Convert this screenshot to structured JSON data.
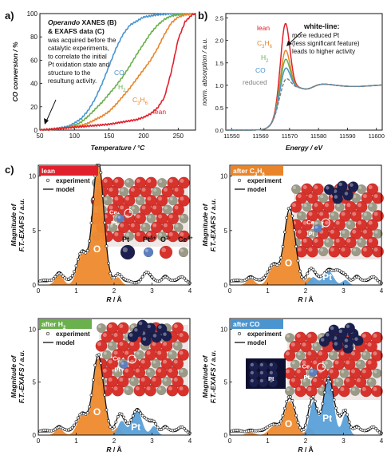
{
  "colors": {
    "lean": "#e0202c",
    "c3h6": "#e8852a",
    "h2": "#6ab04c",
    "co": "#4a95d0",
    "reduced": "#808080",
    "orange_fill": "#ee8a2e",
    "blue_fill": "#5aa0d8",
    "oxygen_ball": "#d7332c",
    "ce_ball": "#9a9a86",
    "pt_ball": "#1a1f4e",
    "ptc_ball": "#5d7fbf"
  },
  "panel_a": {
    "letter": "a)",
    "note_title": "Operando XANES (B) & EXAFS data (C)",
    "note_title_italic": "Operando",
    "note_title_rest": " XANES (B)",
    "note_title_line2": "& EXAFS data (C)",
    "note_lines": [
      "was acquired before the",
      "catalytic experiments,",
      "to correlate the initial",
      "Pt oxidation state and",
      "structure to the",
      "resultung activity."
    ],
    "curve_labels": {
      "co": "CO",
      "h2": "H",
      "h2_sub": "2",
      "c3h6": "C",
      "c3h6_sub1": "3",
      "c3h6_mid": "H",
      "c3h6_sub2": "6",
      "lean": "lean"
    },
    "xlabel": "Temperature / °C",
    "ylabel": "CO conversion / %"
  },
  "panel_b": {
    "letter": "b)",
    "xlabel": "Energy / eV",
    "ylabel": "norm. absorption / a.u.",
    "heading": "white-line:",
    "text_lines": [
      "more reduced Pt",
      "(less significant feature)",
      "leads to higher activity"
    ],
    "labels": {
      "lean": "lean",
      "c3h6": "C",
      "c3h6_s1": "3",
      "c3h6_m": "H",
      "c3h6_s2": "6",
      "h2": "H",
      "h2_s": "2",
      "co": "CO",
      "reduced": "reduced"
    }
  },
  "panel_c": {
    "letter": "c)",
    "legend_experiment": "experiment",
    "legend_model": "model",
    "xlabel_R": "R",
    "xlabel_unit": " / Å",
    "ylabel_line1": "Magnitude of",
    "ylabel_line2": "F.T.-EXAFS / a.u.",
    "peak_O": "O",
    "peak_Pt": "Pt",
    "subpanels": [
      {
        "tag": "lean",
        "tag_color": "#e0202c"
      },
      {
        "tag": "after C",
        "tag_sub1": "3",
        "tag_mid": "H",
        "tag_sub2": "6",
        "tag_color": "#e8852a"
      },
      {
        "tag": "after H",
        "tag_sub1": "2",
        "tag_color": "#6ab04c"
      },
      {
        "tag": "after CO",
        "tag_color": "#4a95d0"
      }
    ],
    "ball_legend": {
      "pt": "Pt",
      "ptc": "Pt",
      "ptc_sup": "δ+",
      "o": "O",
      "o_sup": "2-",
      "ce": "Ce",
      "ce_sup": "4+"
    },
    "inset_labels": {
      "ce": "Ce",
      "pt": "Pt"
    }
  },
  "chart_data": [
    {
      "type": "line",
      "title": "",
      "xlabel": "Temperature / °C",
      "ylabel": "CO conversion / %",
      "xlim": [
        50,
        275
      ],
      "ylim": [
        0,
        100
      ],
      "xticks": [
        50,
        100,
        150,
        200,
        250
      ],
      "yticks": [
        0,
        20,
        40,
        60,
        80,
        100
      ],
      "series": [
        {
          "name": "CO",
          "color": "#4a95d0",
          "x": [
            50,
            70,
            90,
            100,
            110,
            120,
            130,
            140,
            150,
            160,
            170,
            180,
            200,
            220,
            240,
            260,
            275
          ],
          "y": [
            0,
            1,
            3,
            6,
            10,
            17,
            27,
            40,
            55,
            70,
            82,
            90,
            97,
            99,
            100,
            100,
            100
          ]
        },
        {
          "name": "H2",
          "color": "#6ab04c",
          "x": [
            50,
            70,
            90,
            100,
            110,
            120,
            130,
            140,
            150,
            160,
            170,
            180,
            190,
            200,
            210,
            220,
            230,
            240,
            250,
            260,
            275
          ],
          "y": [
            0,
            1,
            2,
            4,
            7,
            12,
            18,
            24,
            31,
            38,
            46,
            55,
            65,
            74,
            83,
            90,
            95,
            98,
            99,
            100,
            100
          ]
        },
        {
          "name": "C3H6",
          "color": "#e8852a",
          "x": [
            50,
            70,
            90,
            100,
            110,
            120,
            130,
            140,
            150,
            160,
            170,
            180,
            190,
            200,
            210,
            220,
            230,
            240,
            250,
            260,
            275
          ],
          "y": [
            0,
            1,
            2,
            3,
            4,
            6,
            9,
            12,
            16,
            22,
            29,
            36,
            44,
            52,
            60,
            70,
            82,
            92,
            97,
            99,
            100
          ]
        },
        {
          "name": "lean",
          "color": "#e0202c",
          "x": [
            50,
            70,
            90,
            110,
            130,
            150,
            170,
            190,
            200,
            210,
            220,
            230,
            240,
            250,
            260,
            270,
            275
          ],
          "y": [
            0,
            1,
            2,
            3,
            4,
            5,
            7,
            9,
            11,
            14,
            19,
            28,
            50,
            78,
            93,
            99,
            100
          ]
        }
      ]
    },
    {
      "type": "line",
      "title": "",
      "xlabel": "Energy / eV",
      "ylabel": "norm. absorption / a.u.",
      "xlim": [
        11548,
        11602
      ],
      "ylim": [
        0,
        2.6
      ],
      "xticks": [
        11550,
        11560,
        11570,
        11580,
        11590,
        11600
      ],
      "yticks": [
        0.0,
        0.5,
        1.0,
        1.5,
        2.0,
        2.5
      ],
      "series": [
        {
          "name": "lean",
          "color": "#e0202c",
          "peak": 2.55
        },
        {
          "name": "C3H6",
          "color": "#e8852a",
          "peak": 1.95
        },
        {
          "name": "H2",
          "color": "#6ab04c",
          "peak": 1.75
        },
        {
          "name": "CO",
          "color": "#4a95d0",
          "peak": 1.55
        },
        {
          "name": "reduced",
          "color": "#808080",
          "peak": 1.3
        }
      ]
    },
    {
      "type": "line",
      "title": "",
      "xlabel": "R / Å",
      "ylabel": "Magnitude of F.T.-EXAFS / a.u.",
      "xlim": [
        0,
        4
      ],
      "ylim": [
        0,
        11
      ],
      "xticks": [
        0,
        1,
        2,
        3,
        4
      ],
      "yticks": [
        0,
        5,
        10
      ],
      "panels": [
        {
          "name": "lean",
          "O_peak": 11.2,
          "Pt_peak": 0.0
        },
        {
          "name": "after C3H6",
          "O_peak": 6.7,
          "Pt_peak": 1.3
        },
        {
          "name": "after H2",
          "O_peak": 7.2,
          "Pt_peak": 2.4
        },
        {
          "name": "after CO",
          "O_peak": 3.2,
          "Pt_peak": 5.7
        }
      ]
    }
  ]
}
